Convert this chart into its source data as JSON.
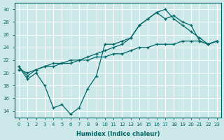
{
  "xlabel": "Humidex (Indice chaleur)",
  "xlim": [
    -0.5,
    23.5
  ],
  "ylim": [
    13,
    31
  ],
  "yticks": [
    14,
    16,
    18,
    20,
    22,
    24,
    26,
    28,
    30
  ],
  "xticks": [
    0,
    1,
    2,
    3,
    4,
    5,
    6,
    7,
    8,
    9,
    10,
    11,
    12,
    13,
    14,
    15,
    16,
    17,
    18,
    19,
    20,
    21,
    22,
    23
  ],
  "bg_color": "#cce8e8",
  "line_color": "#006666",
  "grid_color": "#ffffff",
  "series1_x": [
    0,
    1,
    2,
    3,
    4,
    5,
    6,
    7,
    8,
    9,
    10,
    11,
    12,
    13,
    14,
    15,
    16,
    17,
    18,
    19,
    20,
    21,
    22,
    23
  ],
  "series1_y": [
    21.0,
    19.0,
    20.0,
    18.0,
    14.5,
    15.0,
    13.5,
    14.5,
    17.5,
    19.5,
    24.5,
    24.5,
    25.0,
    25.5,
    27.5,
    28.5,
    29.5,
    30.0,
    28.5,
    27.5,
    26.5,
    25.5,
    24.5,
    25.0
  ],
  "series2_x": [
    0,
    1,
    2,
    3,
    4,
    5,
    6,
    7,
    8,
    9,
    10,
    11,
    12,
    13,
    14,
    15,
    16,
    17,
    18,
    19,
    20,
    21,
    22,
    23
  ],
  "series2_y": [
    21.0,
    19.5,
    20.5,
    21.0,
    21.5,
    21.5,
    22.0,
    22.0,
    22.5,
    23.0,
    23.5,
    24.0,
    24.5,
    25.5,
    27.5,
    28.5,
    29.5,
    28.5,
    29.0,
    28.0,
    27.5,
    25.0,
    24.5,
    25.0
  ],
  "series3_x": [
    0,
    1,
    2,
    3,
    4,
    5,
    6,
    7,
    8,
    9,
    10,
    11,
    12,
    13,
    14,
    15,
    16,
    17,
    18,
    19,
    20,
    21,
    22,
    23
  ],
  "series3_y": [
    20.5,
    20.0,
    20.5,
    21.0,
    21.0,
    21.5,
    21.5,
    22.0,
    22.0,
    22.5,
    22.5,
    23.0,
    23.0,
    23.5,
    24.0,
    24.0,
    24.5,
    24.5,
    24.5,
    25.0,
    25.0,
    25.0,
    24.5,
    25.0
  ]
}
